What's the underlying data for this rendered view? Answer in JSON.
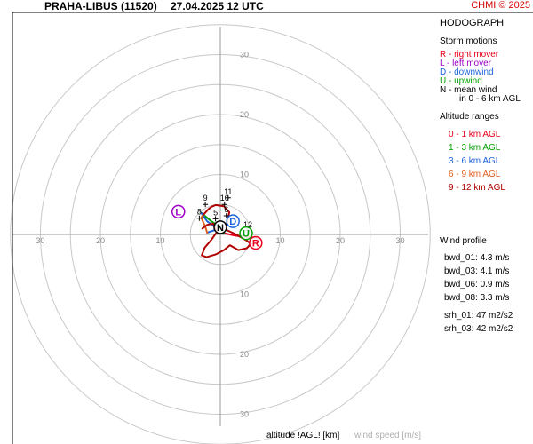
{
  "header": {
    "title": "PRAHA-LIBUS (11520)",
    "datetime": "27.04.2025 12 UTC",
    "copyright": "CHMI © 2025"
  },
  "sidebar": {
    "title": "HODOGRAPH",
    "storm_motions_title": "Storm motions",
    "storm_motions": [
      {
        "text": "R - right mover",
        "color": "#e8001c"
      },
      {
        "text": "L - left mover",
        "color": "#a000c8"
      },
      {
        "text": "D - downwind",
        "color": "#1e64dc"
      },
      {
        "text": "U - upwind",
        "color": "#00a000"
      },
      {
        "text": "N - mean wind",
        "color": "#000000"
      },
      {
        "text": "in 0 - 6 km AGL",
        "color": "#000000"
      }
    ],
    "altitude_title": "Altitude ranges",
    "altitude_ranges": [
      {
        "text": "0 - 1 km AGL",
        "color": "#e8001c"
      },
      {
        "text": "1 - 3 km AGL",
        "color": "#00a000"
      },
      {
        "text": "3 - 6 km AGL",
        "color": "#1e64dc"
      },
      {
        "text": "6 - 9 km AGL",
        "color": "#e06020"
      },
      {
        "text": "9 - 12 km AGL",
        "color": "#b00000"
      }
    ],
    "wind_profile_title": "Wind profile",
    "wind_profile": [
      "bwd_01: 4.3 m/s",
      "bwd_03: 4.1 m/s",
      "bwd_06: 0.9 m/s",
      "bwd_08: 3.3 m/s",
      "srh_01: 47 m2/s2",
      "srh_03: 42 m2/s2"
    ]
  },
  "footer": {
    "altitude_label": "altitude !AGL! [km]",
    "wind_speed_label": "wind speed [m/s]"
  },
  "chart_data": {
    "type": "hodograph",
    "rings": [
      5,
      10,
      15,
      20,
      25,
      30,
      35
    ],
    "ring_labels": [
      10,
      20,
      30
    ],
    "axis_labels_x": [
      -30,
      -20,
      -10,
      10,
      20,
      30
    ],
    "axis_labels_y": [
      30,
      20,
      10,
      10,
      20,
      30
    ],
    "trace": [
      {
        "layer": "0-1",
        "color": "#e8001c",
        "points": [
          [
            6.5,
            -0.6
          ],
          [
            4.5,
            -0.4
          ],
          [
            2.5,
            -0.2
          ],
          [
            0.6,
            0.2
          ]
        ]
      },
      {
        "layer": "1-3",
        "color": "#00a000",
        "points": [
          [
            0.6,
            0.2
          ],
          [
            0.6,
            0.3
          ],
          [
            -0.6,
            1.6
          ],
          [
            -1.5,
            2.2
          ],
          [
            -3.2,
            3.6
          ]
        ]
      },
      {
        "layer": "3-6",
        "color": "#1e64dc",
        "points": [
          [
            -3.2,
            3.6
          ],
          [
            -2.2,
            2.2
          ],
          [
            -1.0,
            1.3
          ],
          [
            -0.7,
            0.8
          ],
          [
            -2.2,
            0.3
          ]
        ]
      },
      {
        "layer": "6-9",
        "color": "#e06020",
        "points": [
          [
            -2.2,
            0.3
          ],
          [
            -2.5,
            1.3
          ],
          [
            -3.2,
            2.8
          ],
          [
            -2.8,
            3.3
          ]
        ]
      },
      {
        "layer": "9-12",
        "color": "#b00000",
        "points": [
          [
            -2.8,
            3.3
          ],
          [
            -2.0,
            4.2
          ],
          [
            -1.5,
            4.6
          ],
          [
            -0.8,
            4.9
          ],
          [
            0.6,
            4.7
          ],
          [
            1.5,
            3.7
          ],
          [
            1.2,
            2.3
          ],
          [
            0.9,
            0.8
          ],
          [
            2.2,
            0.2
          ],
          [
            3.5,
            -0.5
          ],
          [
            4.5,
            -1.1
          ],
          [
            5.1,
            -1.6
          ],
          [
            4.4,
            -2.3
          ],
          [
            3.0,
            -2.6
          ],
          [
            1.6,
            -1.8
          ],
          [
            0.6,
            -2.6
          ],
          [
            -0.7,
            -3.3
          ],
          [
            -2.3,
            -3.8
          ],
          [
            -3.1,
            -3.5
          ],
          [
            -2.6,
            -2.2
          ],
          [
            -1.5,
            -0.9
          ],
          [
            -0.5,
            0.5
          ],
          [
            -1.2,
            1.8
          ],
          [
            -2.2,
            1.6
          ],
          [
            -3.0,
            1.0
          ]
        ]
      }
    ],
    "height_labels": [
      {
        "text": "9",
        "u": -2.5,
        "v": 5.6
      },
      {
        "text": "8",
        "u": -3.5,
        "v": 3.3
      },
      {
        "text": "11",
        "u": 1.3,
        "v": 6.7
      },
      {
        "text": "10",
        "u": 0.7,
        "v": 5.6
      },
      {
        "text": "6",
        "u": 1.0,
        "v": 3.7
      },
      {
        "text": "5",
        "u": -0.8,
        "v": 3.2
      },
      {
        "text": "12",
        "u": 4.6,
        "v": 1.2
      }
    ],
    "storm_motions": [
      {
        "label": "R",
        "u": 5.9,
        "v": -1.4,
        "color": "#e8001c"
      },
      {
        "label": "L",
        "u": -7.0,
        "v": 3.8,
        "color": "#a000c8"
      },
      {
        "label": "D",
        "u": 2.1,
        "v": 2.2,
        "color": "#1e64dc"
      },
      {
        "label": "U",
        "u": 4.3,
        "v": 0.2,
        "color": "#00a000"
      },
      {
        "label": "N",
        "u": 0.0,
        "v": 1.2,
        "color": "#000000"
      }
    ]
  }
}
